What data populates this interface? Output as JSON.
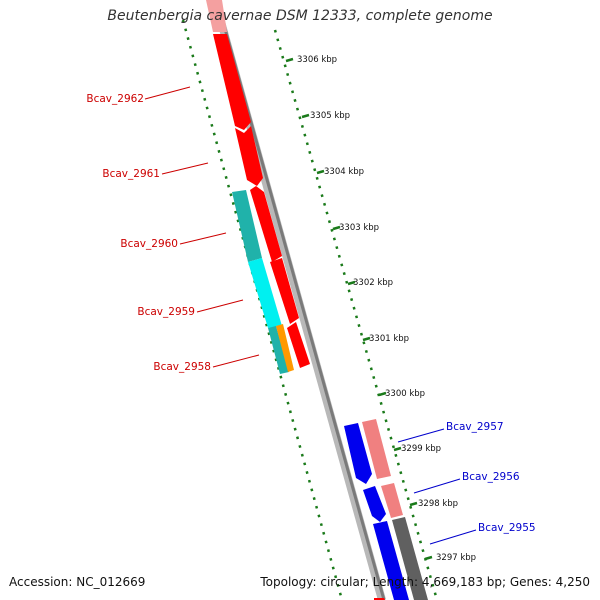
{
  "title": "Beutenbergia cavernae DSM 12333, complete genome",
  "accession": "Accession: NC_012669",
  "summary": "Topology: circular; Length: 4,669,183 bp; Genes: 4,250",
  "colors": {
    "backbone": "#8a8a8a",
    "tick": "#1a7a1a",
    "gene_red": "#ff0000",
    "gene_cyan": "#00ffff",
    "gene_teal": "#20b2aa",
    "gene_orange": "#ff9900",
    "gene_blue": "#0000ee",
    "gene_pink": "#f08080",
    "gene_grey": "#606060",
    "label_red": "#cc0000",
    "label_blue": "#0000cc"
  },
  "kbp_labels": [
    "3306 kbp",
    "3305 kbp",
    "3304 kbp",
    "3303 kbp",
    "3302 kbp",
    "3301 kbp",
    "3300 kbp",
    "3299 kbp",
    "3298 kbp",
    "3297 kbp"
  ],
  "gene_labels_left": [
    "Bcav_2962",
    "Bcav_2961",
    "Bcav_2960",
    "Bcav_2959",
    "Bcav_2958"
  ],
  "gene_labels_right": [
    "Bcav_2957",
    "Bcav_2956",
    "Bcav_2955"
  ]
}
